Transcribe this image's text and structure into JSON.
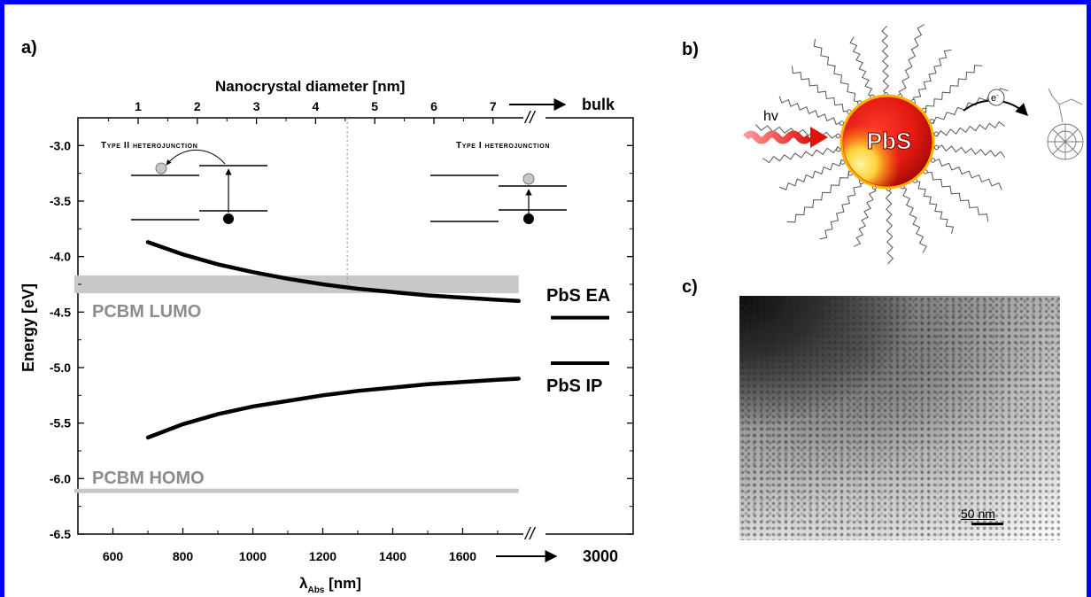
{
  "panels": {
    "a_label": "a)",
    "b_label": "b)",
    "c_label": "c)"
  },
  "chart_data": {
    "type": "line",
    "top_axis_label": "Nanocrystal diameter [nm]",
    "top_ticks": [
      "1",
      "2",
      "3",
      "4",
      "5",
      "6",
      "7"
    ],
    "top_bulk_label": "bulk",
    "ylabel": "Energy  [eV]",
    "xlabel_main": "λ",
    "xlabel_sub": "Abs",
    "xlabel_unit": " [nm]",
    "x_ticks": [
      "600",
      "800",
      "1000",
      "1200",
      "1400",
      "1600"
    ],
    "x_extra_tick": "3000",
    "y_ticks": [
      "-3.0",
      "-3.5",
      "-4.0",
      "-4.5",
      "-5.0",
      "-5.5",
      "-6.0",
      "-6.5"
    ],
    "ylim": [
      -6.5,
      -2.75
    ],
    "xlim": [
      530,
      1760
    ],
    "series": [
      {
        "name": "PbS EA",
        "x": [
          700,
          800,
          900,
          1000,
          1100,
          1200,
          1300,
          1400,
          1500,
          1600,
          1700,
          1760
        ],
        "y": [
          -3.87,
          -3.98,
          -4.07,
          -4.14,
          -4.2,
          -4.25,
          -4.29,
          -4.32,
          -4.35,
          -4.37,
          -4.39,
          -4.4
        ]
      },
      {
        "name": "PbS IP",
        "x": [
          700,
          800,
          900,
          1000,
          1100,
          1200,
          1300,
          1400,
          1500,
          1600,
          1700,
          1760
        ],
        "y": [
          -5.63,
          -5.51,
          -5.42,
          -5.35,
          -5.3,
          -5.25,
          -5.21,
          -5.18,
          -5.15,
          -5.13,
          -5.11,
          -5.1
        ]
      }
    ],
    "bands": [
      {
        "name": "PCBM LUMO",
        "y_top": -4.17,
        "y_bottom": -4.33,
        "color": "#c8c8c8"
      },
      {
        "name": "PCBM HOMO",
        "y_top": -6.09,
        "y_bottom": -6.13,
        "color": "#c8c8c8"
      }
    ],
    "bulk_levels": [
      -4.55,
      -4.96
    ],
    "divider_x": 1270,
    "annotations": {
      "type2": "Type II heterojunction",
      "type1": "Type I heterojunction",
      "lumo": "PCBM LUMO",
      "homo": "PCBM HOMO",
      "pbs_ea": "PbS EA",
      "pbs_ip": "PbS IP"
    },
    "break_symbol": "//"
  },
  "schematic": {
    "light_label": "hv",
    "core_label": "PbS",
    "electron_label": "e",
    "electron_sup": "-"
  },
  "tem": {
    "scale_label": "50 nm"
  }
}
